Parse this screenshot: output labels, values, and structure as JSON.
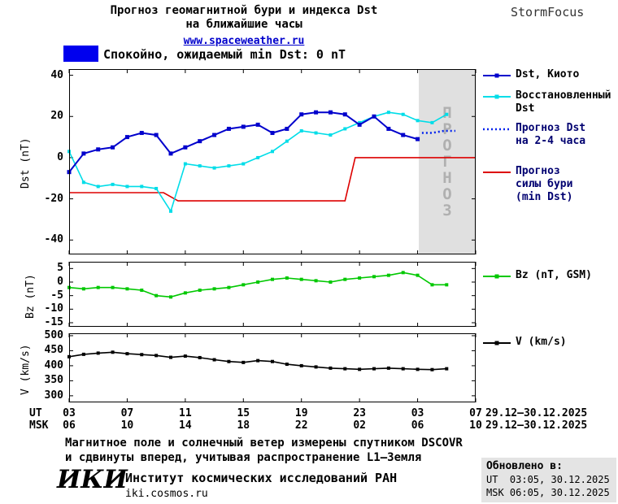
{
  "header": {
    "title_line1": "Прогноз геомагнитной бури и индекса Dst",
    "title_line2": "на ближайшие часы",
    "site_link": "www.spaceweather.ru",
    "brand": "StormFocus",
    "status_label": "Спокойно, ожидаемый min Dst: 0 nT"
  },
  "colors": {
    "kyoto": "#0000cc",
    "restored": "#00dde8",
    "forecast_dst": "#0022ee",
    "storm_forecast": "#dd0000",
    "bz": "#00c800",
    "v": "#000000",
    "quiet_level": "#0000ee",
    "forecast_bg": "#e0e0e0",
    "forecast_text": "#b0b0b0",
    "link": "#0000cc"
  },
  "chart_data": [
    {
      "type": "line",
      "ylabel": "Dst (nT)",
      "xlabel": "UT hours",
      "xlim": [
        3,
        31
      ],
      "ylim": [
        -47,
        43
      ],
      "yticks": [
        40,
        20,
        0,
        -20,
        -40
      ],
      "forecast_region_start": 27.08,
      "forecast_label": "ПРОГНОЗ",
      "series": [
        {
          "name": "Прогноз силы бури (min Dst)",
          "color": "#dd0000",
          "style": "solid",
          "width": 1.6,
          "x": [
            3,
            9.5,
            10.5,
            22,
            22.7,
            31
          ],
          "y": [
            -17,
            -17,
            -21,
            -21,
            0,
            0
          ]
        },
        {
          "name": "Восстановленный Dst",
          "color": "#00dde8",
          "style": "solid",
          "marker": "square",
          "width": 1.6,
          "x": [
            3,
            4,
            5,
            6,
            7,
            8,
            9,
            10,
            11,
            12,
            13,
            14,
            15,
            16,
            17,
            18,
            19,
            20,
            21,
            22,
            23,
            24,
            25,
            26,
            27,
            28,
            29
          ],
          "y": [
            3,
            -12,
            -14,
            -13,
            -14,
            -14,
            -15,
            -26,
            -3,
            -4,
            -5,
            -4,
            -3,
            0,
            3,
            8,
            13,
            12,
            11,
            14,
            17,
            20,
            22,
            21,
            18,
            17,
            21
          ]
        },
        {
          "name": "Dst, Киото",
          "color": "#0000cc",
          "style": "solid",
          "marker": "square",
          "width": 2,
          "msize": 5,
          "x": [
            3,
            4,
            5,
            6,
            7,
            8,
            9,
            10,
            11,
            12,
            13,
            14,
            15,
            16,
            17,
            18,
            19,
            20,
            21,
            22,
            23,
            24,
            25,
            26,
            27
          ],
          "y": [
            -7,
            2,
            4,
            5,
            10,
            12,
            11,
            2,
            5,
            8,
            11,
            14,
            15,
            16,
            12,
            14,
            21,
            22,
            22,
            21,
            16,
            20,
            14,
            11,
            9
          ]
        },
        {
          "name": "Прогноз Dst на 2-4 часа",
          "color": "#0022ee",
          "style": "dotted",
          "width": 2.5,
          "x": [
            27.3,
            28,
            28.8,
            29.6
          ],
          "y": [
            12,
            12,
            13,
            13
          ]
        }
      ]
    },
    {
      "type": "line",
      "ylabel": "Bz (nT)",
      "xlim": [
        3,
        31
      ],
      "ylim": [
        -16.5,
        7.5
      ],
      "yticks": [
        5,
        0,
        -5,
        -10,
        -15
      ],
      "series": [
        {
          "name": "Bz (nT, GSM)",
          "color": "#00c800",
          "style": "solid",
          "marker": "square",
          "width": 1.6,
          "x": [
            3,
            4,
            5,
            6,
            7,
            8,
            9,
            10,
            11,
            12,
            13,
            14,
            15,
            16,
            17,
            18,
            19,
            20,
            21,
            22,
            23,
            24,
            25,
            26,
            27,
            28,
            29
          ],
          "y": [
            -2,
            -2.5,
            -2,
            -2,
            -2.5,
            -3,
            -5,
            -5.5,
            -4,
            -3,
            -2.5,
            -2,
            -1,
            0,
            1,
            1.5,
            1,
            0.5,
            0,
            1,
            1.5,
            2,
            2.5,
            3.5,
            2.5,
            -1,
            -1
          ]
        }
      ]
    },
    {
      "type": "line",
      "ylabel": "V (km/s)",
      "xlim": [
        3,
        31
      ],
      "ylim": [
        278,
        508
      ],
      "yticks": [
        500,
        450,
        400,
        350,
        300
      ],
      "series": [
        {
          "name": "V (km/s)",
          "color": "#000000",
          "style": "solid",
          "marker": "square",
          "width": 1.6,
          "x": [
            3,
            4,
            5,
            6,
            7,
            8,
            9,
            10,
            11,
            12,
            13,
            14,
            15,
            16,
            17,
            18,
            19,
            20,
            21,
            22,
            23,
            24,
            25,
            26,
            27,
            28,
            29
          ],
          "y": [
            430,
            438,
            442,
            445,
            440,
            437,
            434,
            428,
            432,
            427,
            420,
            414,
            411,
            417,
            414,
            405,
            400,
            396,
            392,
            390,
            388,
            390,
            392,
            390,
            388,
            387,
            390
          ]
        }
      ]
    }
  ],
  "xaxis": {
    "ut_label": "UT",
    "msk_label": "MSK",
    "tick_hours": [
      3,
      7,
      11,
      15,
      19,
      23,
      27,
      31
    ],
    "ut_ticks": [
      "03",
      "07",
      "11",
      "15",
      "19",
      "23",
      "03",
      "07"
    ],
    "msk_ticks": [
      "06",
      "10",
      "14",
      "18",
      "22",
      "02",
      "06",
      "10"
    ],
    "ut_dates": "29.12–30.12.2025",
    "msk_dates": "29.12–30.12.2025"
  },
  "legend": {
    "items": [
      {
        "lines": [
          "Dst, Киото"
        ],
        "color": "#0000cc",
        "style": "solid",
        "marker": true,
        "text_color": "#000000"
      },
      {
        "lines": [
          "Восстановленный",
          "Dst"
        ],
        "color": "#00dde8",
        "style": "solid",
        "marker": true,
        "text_color": "#000000"
      },
      {
        "lines": [
          "Прогноз Dst",
          "на 2-4 часа"
        ],
        "color": "#0022ee",
        "style": "dotted",
        "marker": false,
        "text_color": "#000070"
      },
      {
        "lines": [
          "Прогноз",
          "силы бури",
          "(min Dst)"
        ],
        "color": "#dd0000",
        "style": "solid",
        "marker": false,
        "text_color": "#000070"
      },
      {
        "lines": [
          "Bz (nT, GSM)"
        ],
        "color": "#00c800",
        "style": "solid",
        "marker": true,
        "text_color": "#000000"
      },
      {
        "lines": [
          "V (km/s)"
        ],
        "color": "#000000",
        "style": "solid",
        "marker": true,
        "text_color": "#000000"
      }
    ]
  },
  "footer": {
    "note_line1": "Магнитное поле и солнечный ветер измерены спутником DSCOVR",
    "note_line2": "и сдвинуты вперед, учитывая распространение L1–Земля",
    "logo": "ИКИ",
    "institute": "Институт космических исследований РАН",
    "institute_site": "iki.cosmos.ru",
    "updated_label": "Обновлено в:",
    "updated_ut": "UT  03:05, 30.12.2025",
    "updated_msk": "MSK 06:05, 30.12.2025"
  }
}
